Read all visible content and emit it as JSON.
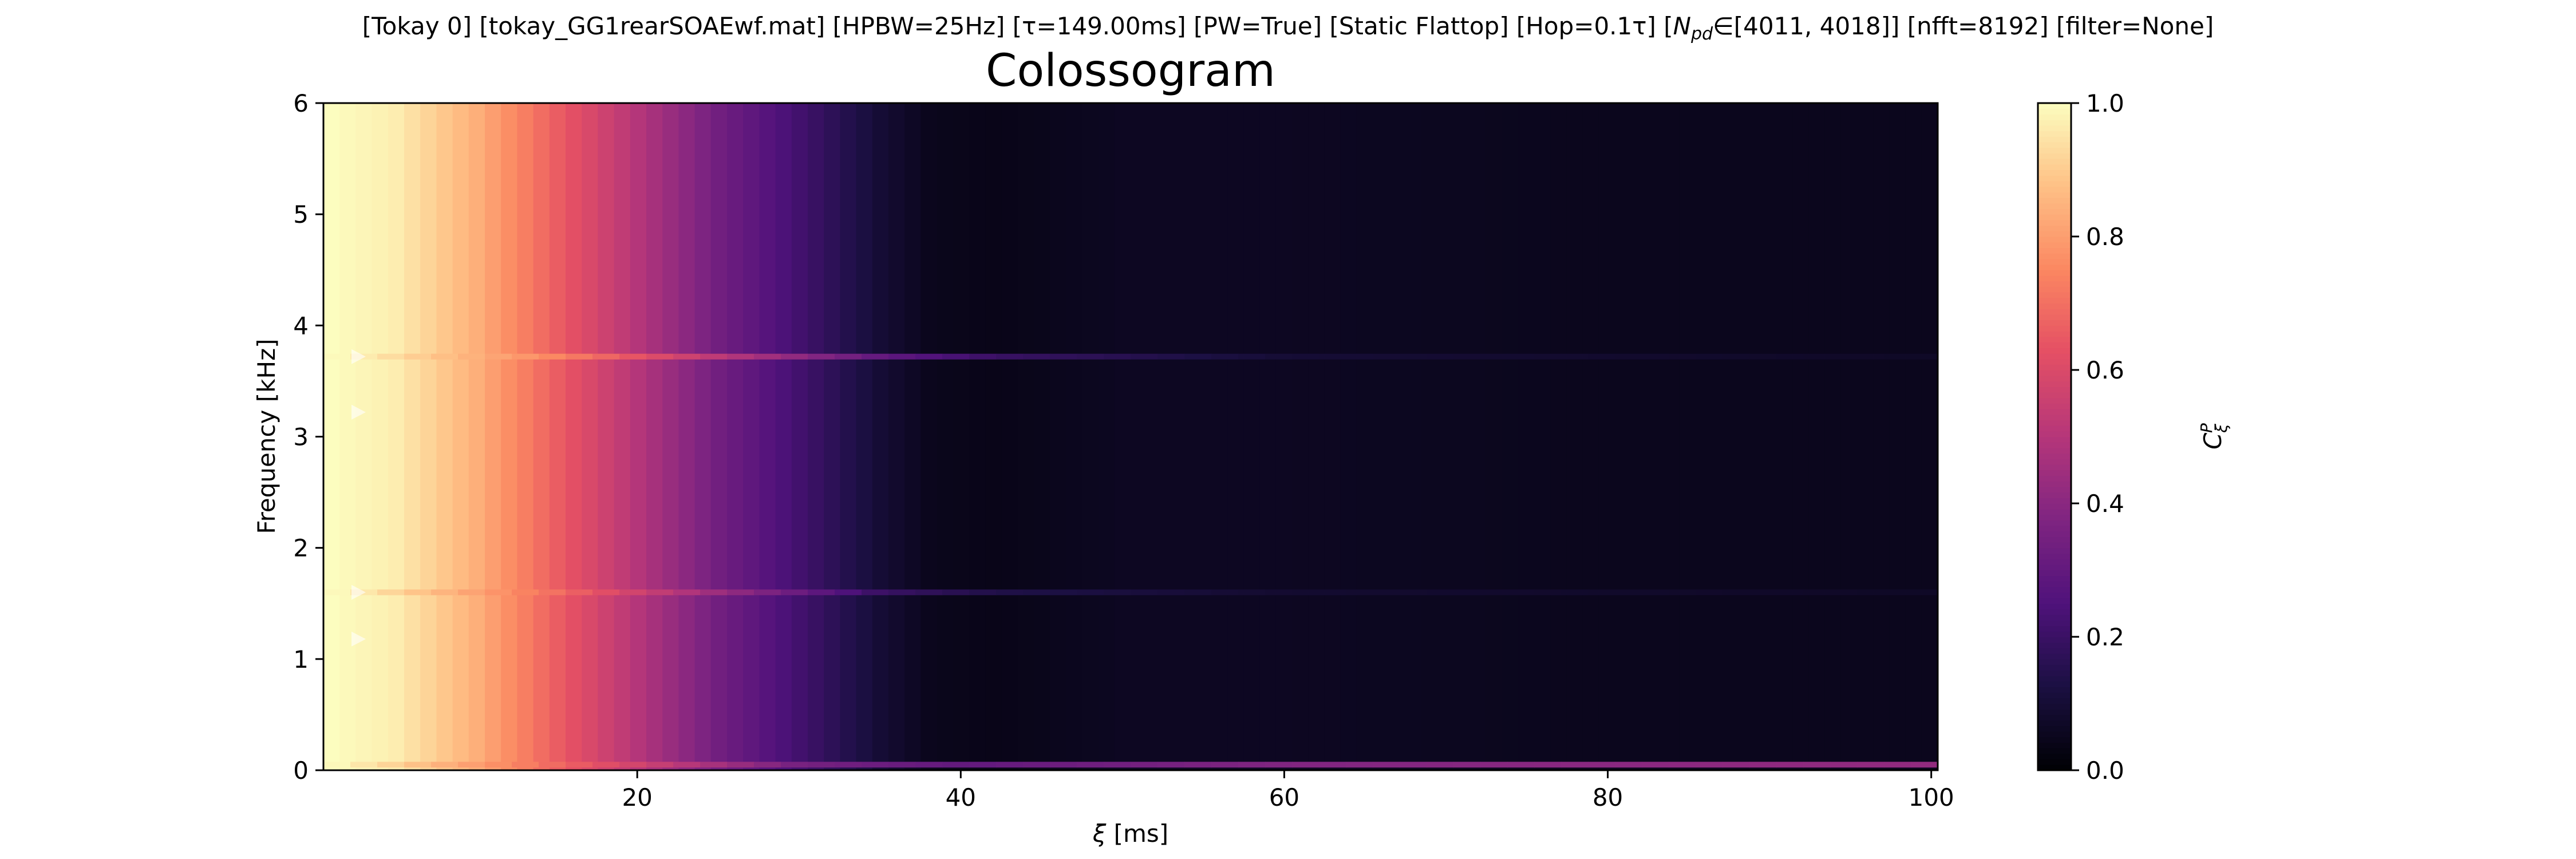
{
  "chart_data": {
    "type": "heatmap",
    "suptitle": "[Tokay 0]   [tokay_GG1rearSOAEwf.mat]   [HPBW=25Hz]   [τ=149.00ms]   [PW=True]   [Static Flattop]   [Hop=0.1τ]   [N_pd∈[4011, 4018]]   [nfft=8192]   [filter=None]",
    "suptitle_parts": {
      "pre": "[Tokay 0]   [tokay_GG1rearSOAEwf.mat]   [HPBW=25Hz]   [τ=149.00ms]   [PW=True]   [Static Flattop]   [Hop=0.1τ]   [",
      "var": "N",
      "sub": "pd",
      "post": "∈[4011, 4018]]   [nfft=8192]   [filter=None]"
    },
    "title": "Colossogram",
    "xlabel_symbol": "ξ",
    "xlabel_unit": "[ms]",
    "ylabel": "Frequency [kHz]",
    "colorbar_label": {
      "main": "C",
      "sub": "ξ",
      "sup": "P"
    },
    "colormap": "magma",
    "xlim": [
      0.6,
      100.4
    ],
    "ylim": [
      0,
      6
    ],
    "clim": [
      0,
      1
    ],
    "xticks": [
      20,
      40,
      60,
      80,
      100
    ],
    "yticks": [
      0,
      1,
      2,
      3,
      4,
      5,
      6
    ],
    "cbar_ticks": [
      0.0,
      0.2,
      0.4,
      0.6,
      0.8,
      1.0
    ],
    "cbar_ticklabels": [
      "0.0",
      "0.2",
      "0.4",
      "0.6",
      "0.8",
      "1.0"
    ],
    "background_profile_xi_ms": [
      1,
      5,
      10,
      15,
      20,
      25,
      30,
      35,
      38,
      42,
      50,
      60,
      80,
      100
    ],
    "background_profile_c": [
      1.0,
      0.97,
      0.84,
      0.66,
      0.5,
      0.34,
      0.22,
      0.1,
      0.05,
      0.04,
      0.06,
      0.06,
      0.05,
      0.05
    ],
    "peak_lines": [
      {
        "freq_khz": 3.72,
        "xi_ms": [
          1,
          15,
          25,
          35,
          42,
          60,
          100
        ],
        "c": [
          1.0,
          0.75,
          0.52,
          0.3,
          0.2,
          0.1,
          0.07
        ]
      },
      {
        "freq_khz": 1.6,
        "xi_ms": [
          1,
          15,
          25,
          35,
          42,
          60,
          100
        ],
        "c": [
          1.0,
          0.7,
          0.44,
          0.2,
          0.14,
          0.09,
          0.07
        ]
      },
      {
        "freq_khz": 0.05,
        "xi_ms": [
          1,
          30,
          40,
          60,
          100
        ],
        "c": [
          1.0,
          0.35,
          0.3,
          0.38,
          0.42
        ]
      }
    ],
    "markers_khz": [
      3.72,
      3.22,
      1.6,
      1.18
    ]
  }
}
